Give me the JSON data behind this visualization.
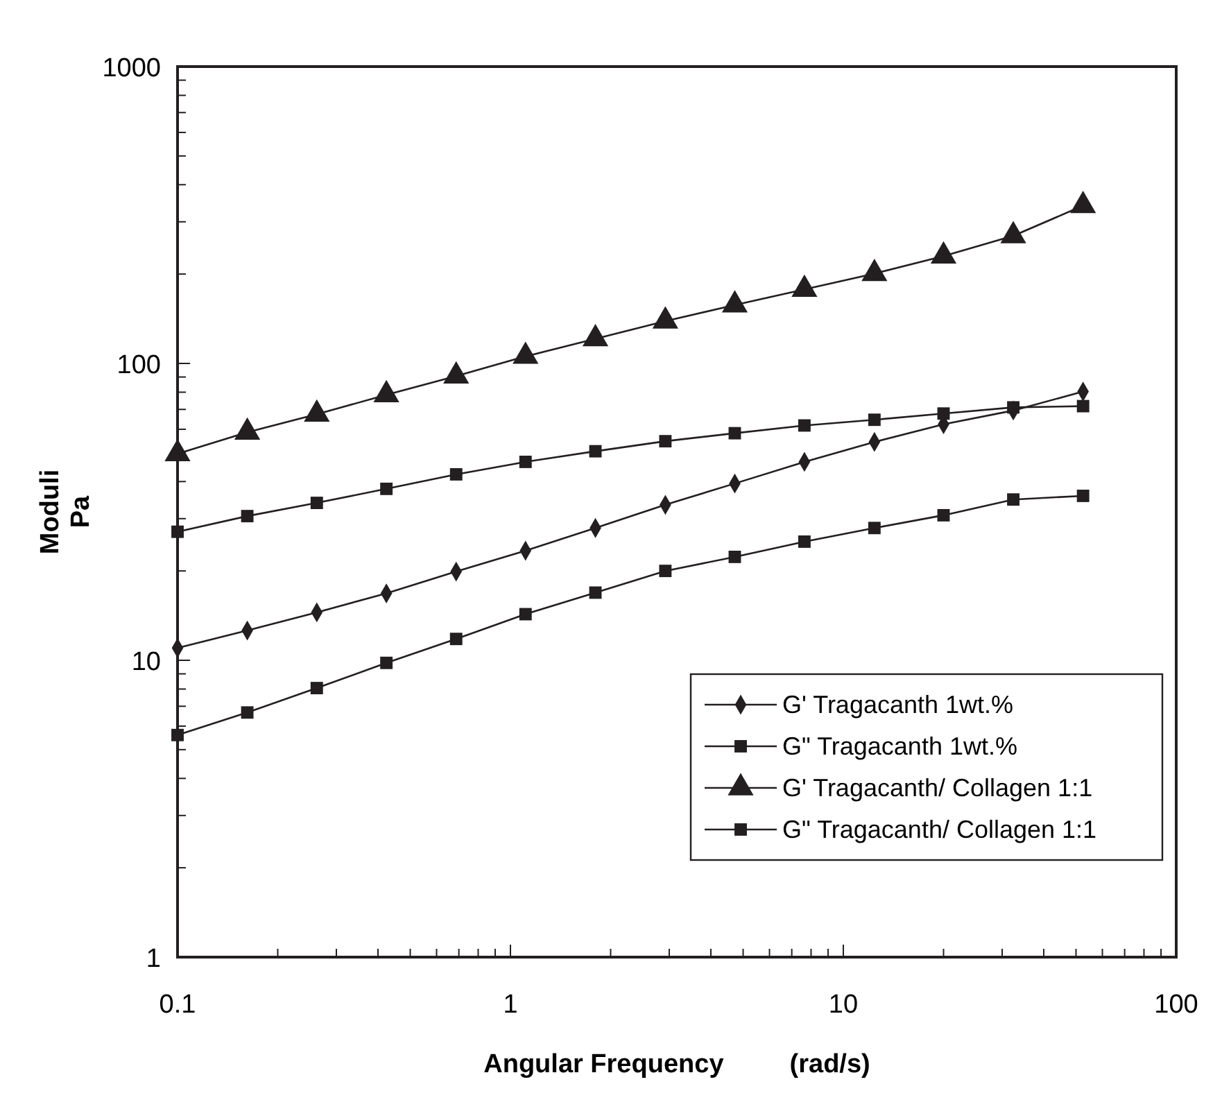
{
  "chart_data": {
    "type": "line",
    "xlabel": "Angular Frequency         (rad/s)",
    "ylabel": "Moduli\nPa",
    "log": "xy",
    "grid": false,
    "legend": "bottom right",
    "x": [
      0.1,
      0.162,
      0.262,
      0.424,
      0.687,
      1.11,
      1.8,
      2.92,
      4.72,
      7.64,
      12.4,
      20,
      32.4,
      52.5
    ],
    "xlim": [
      0.1,
      100
    ],
    "xticks": [
      0.1,
      {
        "value": 0.2,
        "label": null
      },
      {
        "value": 0.3,
        "label": null
      },
      {
        "value": 0.4,
        "label": null
      },
      {
        "value": 0.5,
        "label": null
      },
      {
        "value": 0.6,
        "label": null
      },
      {
        "value": 0.7,
        "label": null
      },
      {
        "value": 0.8,
        "label": null
      },
      {
        "value": 0.9,
        "label": null
      },
      1,
      {
        "value": 2,
        "label": null
      },
      {
        "value": 3,
        "label": null
      },
      {
        "value": 4,
        "label": null
      },
      {
        "value": 5,
        "label": null
      },
      {
        "value": 6,
        "label": null
      },
      {
        "value": 7,
        "label": null
      },
      {
        "value": 8,
        "label": null
      },
      {
        "value": 9,
        "label": null
      },
      10,
      {
        "value": 20,
        "label": null
      },
      {
        "value": 30,
        "label": null
      },
      {
        "value": 40,
        "label": null
      },
      {
        "value": 50,
        "label": null
      },
      {
        "value": 60,
        "label": null
      },
      {
        "value": 70,
        "label": null
      },
      {
        "value": 80,
        "label": null
      },
      {
        "value": 90,
        "label": null
      },
      100
    ],
    "ylim": [
      1,
      1000
    ],
    "yticks": [
      1,
      {
        "value": 2,
        "label": null
      },
      {
        "value": 3,
        "label": null
      },
      {
        "value": 4,
        "label": null
      },
      {
        "value": 5,
        "label": null
      },
      {
        "value": 6,
        "label": null
      },
      {
        "value": 7,
        "label": null
      },
      {
        "value": 8,
        "label": null
      },
      {
        "value": 9,
        "label": null
      },
      10,
      {
        "value": 20,
        "label": null
      },
      {
        "value": 30,
        "label": null
      },
      {
        "value": 40,
        "label": null
      },
      {
        "value": 50,
        "label": null
      },
      {
        "value": 60,
        "label": null
      },
      {
        "value": 70,
        "label": null
      },
      {
        "value": 80,
        "label": null
      },
      {
        "value": 90,
        "label": null
      },
      100,
      {
        "value": 200,
        "label": null
      },
      {
        "value": 300,
        "label": null
      },
      {
        "value": 400,
        "label": null
      },
      {
        "value": 500,
        "label": null
      },
      {
        "value": 600,
        "label": null
      },
      {
        "value": 700,
        "label": null
      },
      {
        "value": 800,
        "label": null
      },
      {
        "value": 900,
        "label": null
      },
      1000
    ],
    "series": [
      {
        "name": "G' Tragacanth 1wt.%",
        "color": "#231f20",
        "marker": "diamond",
        "values": [
          11.0,
          12.6,
          14.5,
          16.8,
          19.9,
          23.4,
          27.9,
          33.4,
          39.4,
          46.6,
          54.4,
          62.4,
          69.4,
          80.4
        ]
      },
      {
        "name": "G\" Tragacanth 1wt.%",
        "color": "#231f20",
        "marker": "square",
        "values": [
          5.6,
          6.67,
          8.06,
          9.8,
          11.8,
          14.3,
          16.9,
          20.0,
          22.3,
          25.1,
          27.9,
          30.8,
          34.8,
          35.8
        ]
      },
      {
        "name": "G' Tragacanth/ Collagen 1:1",
        "color": "#231f20",
        "marker": "triangle",
        "values": [
          49.6,
          58.6,
          67.4,
          78.4,
          90.7,
          105.6,
          121,
          138.8,
          157.4,
          177.6,
          200.7,
          230,
          269,
          340
        ]
      },
      {
        "name": "G\" Tragacanth/ Collagen 1:1",
        "color": "#231f20",
        "marker": "square",
        "values": [
          27.1,
          30.6,
          33.9,
          37.8,
          42.3,
          46.6,
          50.6,
          54.7,
          58.2,
          61.8,
          64.6,
          67.8,
          71.1,
          71.8
        ]
      }
    ]
  }
}
